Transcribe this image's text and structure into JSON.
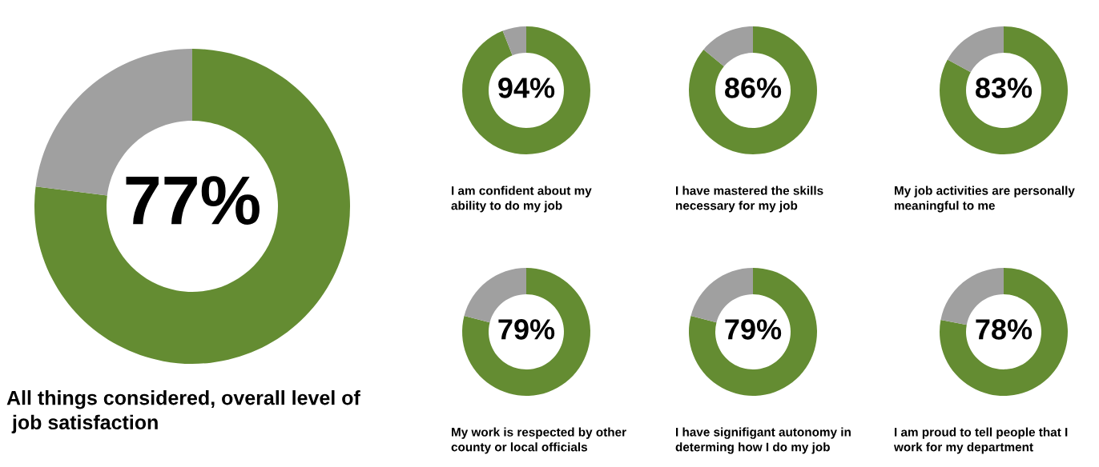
{
  "chart_data": [
    {
      "type": "donut",
      "title": "All things considered, overall level of\n job satisfaction",
      "categories": [
        null,
        null
      ],
      "values": [
        77,
        23
      ],
      "colors": [
        "#648c32",
        "#a0a0a0"
      ],
      "value_labels": [
        "77%",
        null
      ]
    },
    {
      "type": "donut",
      "title": "I am confident about my\nability to do my job",
      "categories": [
        null,
        null
      ],
      "values": [
        94,
        6
      ],
      "colors": [
        "#648c32",
        "#a0a0a0"
      ],
      "value_labels": [
        "94%",
        null
      ]
    },
    {
      "type": "donut",
      "title": "I have mastered the skills\nnecessary for my job",
      "categories": [
        null,
        null
      ],
      "values": [
        86,
        14
      ],
      "colors": [
        "#648c32",
        "#a0a0a0"
      ],
      "value_labels": [
        "86%",
        null
      ]
    },
    {
      "type": "donut",
      "title": "My job activities are personally\nmeaningful to me",
      "categories": [
        null,
        null
      ],
      "values": [
        83,
        17
      ],
      "colors": [
        "#648c32",
        "#a0a0a0"
      ],
      "value_labels": [
        "83%",
        null
      ]
    },
    {
      "type": "donut",
      "title": "My work is respected by other\ncounty or local officials",
      "categories": [
        null,
        null
      ],
      "values": [
        79,
        21
      ],
      "colors": [
        "#648c32",
        "#a0a0a0"
      ],
      "value_labels": [
        "79%",
        null
      ]
    },
    {
      "type": "donut",
      "title": "I have signifigant autonomy in\ndeterming how I do my job",
      "categories": [
        null,
        null
      ],
      "values": [
        79,
        21
      ],
      "colors": [
        "#648c32",
        "#a0a0a0"
      ],
      "value_labels": [
        "79%",
        null
      ]
    },
    {
      "type": "donut",
      "title": "I am proud to tell people that I\nwork for my department",
      "categories": [
        null,
        null
      ],
      "values": [
        78,
        22
      ],
      "colors": [
        "#648c32",
        "#a0a0a0"
      ],
      "value_labels": [
        "78%",
        null
      ]
    }
  ]
}
